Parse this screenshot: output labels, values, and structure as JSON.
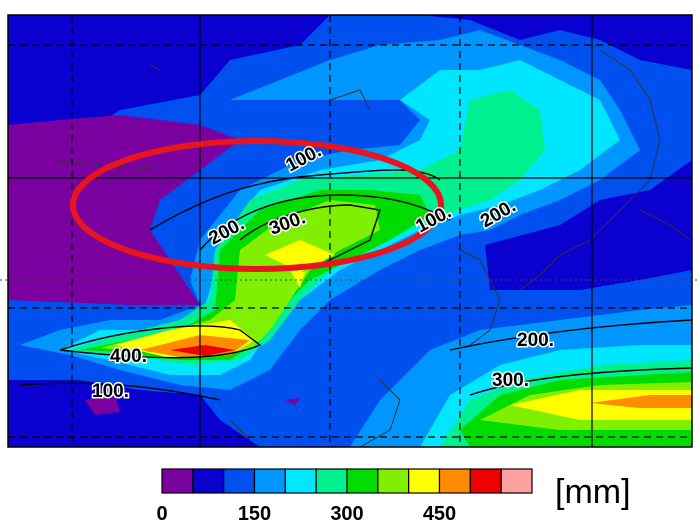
{
  "map": {
    "contour_labels": [
      "100.",
      "200.",
      "300.",
      "400.",
      "100.",
      "200.",
      "100.",
      "200.",
      "300."
    ],
    "colorbar": {
      "colors": [
        "#7a00a0",
        "#0a00d0",
        "#0050f0",
        "#0096ff",
        "#00e6ff",
        "#00f090",
        "#00dc00",
        "#80f000",
        "#ffff00",
        "#ff8c00",
        "#f00000",
        "#ffa0a0"
      ],
      "range": [
        0,
        600
      ],
      "ticks": [
        0,
        150,
        300,
        450
      ],
      "unit": "[mm]"
    }
  }
}
